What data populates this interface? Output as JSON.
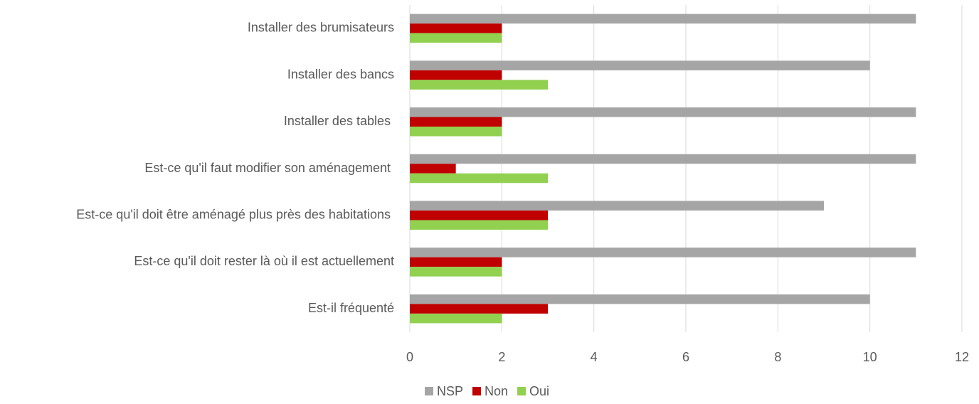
{
  "chart_data": {
    "type": "hbar",
    "categories": [
      "Installer des brumisateurs",
      "Installer des bancs",
      "Installer des tables ",
      "Est-ce qu'il faut modifier son aménagement ",
      "Est-ce qu'il doit être aménagé plus près des habitations ",
      "Est-ce qu'il doit rester là où il est actuellement",
      "Est-il fréquenté"
    ],
    "series": [
      {
        "name": "NSP",
        "color": "#a5a5a5",
        "values": [
          11,
          10,
          11,
          11,
          9,
          11,
          10
        ]
      },
      {
        "name": "Non",
        "color": "#c00000",
        "values": [
          2,
          2,
          2,
          1,
          3,
          2,
          3
        ]
      },
      {
        "name": "Oui",
        "color": "#92d050",
        "values": [
          2,
          3,
          2,
          3,
          3,
          2,
          2
        ]
      }
    ],
    "xlim": [
      0,
      12
    ],
    "xticks": [
      0,
      2,
      4,
      6,
      8,
      10,
      12
    ],
    "grid": true,
    "legend": "bottom"
  }
}
